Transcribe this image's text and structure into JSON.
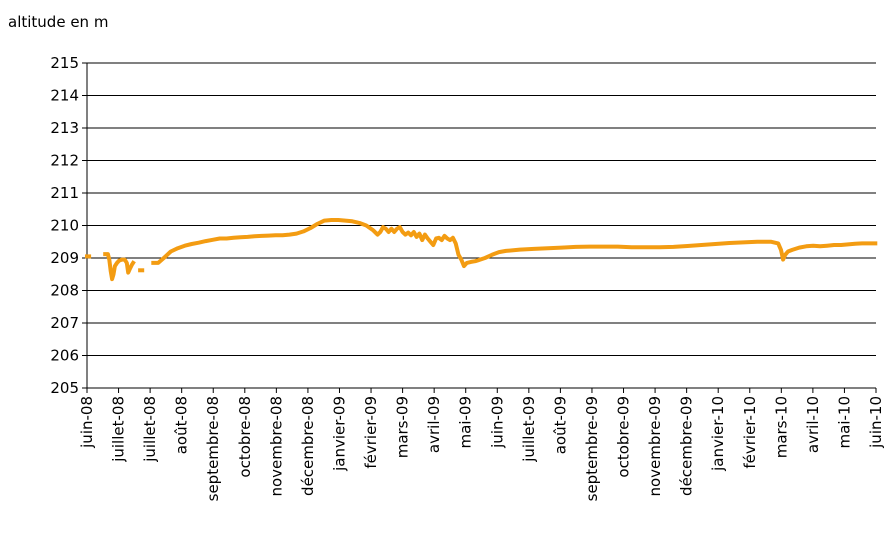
{
  "chart_data": {
    "type": "line",
    "ylabel": "altitude en m",
    "xlabel": "",
    "title": "",
    "ylim": [
      205,
      215
    ],
    "yticks": [
      "205",
      "206",
      "207",
      "208",
      "209",
      "210",
      "211",
      "212",
      "213",
      "214",
      "215"
    ],
    "grid": true,
    "legend": "none",
    "xtick_labels": [
      "juin-08",
      "juillet-08",
      "juillet-08",
      "août-08",
      "septembre-08",
      "octobre-08",
      "novembre-08",
      "décembre-08",
      "janvier-09",
      "février-09",
      "mars-09",
      "avril-09",
      "mai-09",
      "juin-09",
      "juillet-09",
      "août-09",
      "septembre-09",
      "octobre-09",
      "novembre-09",
      "décembre-09",
      "janvier-10",
      "février-10",
      "mars-10",
      "avril-10",
      "mai-10",
      "juin-10"
    ],
    "series_color": "#F39C12",
    "series": [
      {
        "segments": [
          [
            [
              0,
              209.05
            ],
            [
              0.3,
              209.05
            ]
          ],
          [
            [
              2.6,
              209.12
            ],
            [
              3.0,
              209.12
            ],
            [
              3.2,
              208.95
            ],
            [
              3.4,
              208.6
            ],
            [
              3.6,
              208.35
            ],
            [
              3.8,
              208.5
            ],
            [
              4.0,
              208.75
            ],
            [
              4.3,
              208.85
            ],
            [
              4.6,
              208.92
            ],
            [
              5.0,
              208.95
            ],
            [
              5.4,
              208.95
            ],
            [
              5.7,
              208.85
            ],
            [
              5.9,
              208.55
            ],
            [
              6.1,
              208.65
            ],
            [
              6.4,
              208.78
            ],
            [
              6.6,
              208.85
            ]
          ],
          [
            [
              7.6,
              208.62
            ],
            [
              7.9,
              208.62
            ]
          ],
          [
            [
              9.5,
              208.85
            ],
            [
              10.2,
              208.85
            ],
            [
              11.0,
              209.0
            ],
            [
              12.0,
              209.2
            ],
            [
              13.0,
              209.3
            ],
            [
              14.0,
              209.38
            ],
            [
              15.0,
              209.43
            ],
            [
              16.0,
              209.47
            ],
            [
              17.0,
              209.52
            ],
            [
              18.0,
              209.56
            ],
            [
              19.0,
              209.6
            ],
            [
              20.0,
              209.6
            ],
            [
              21.0,
              209.62
            ],
            [
              22.0,
              209.64
            ],
            [
              23.0,
              209.65
            ],
            [
              24.0,
              209.67
            ],
            [
              25.0,
              209.68
            ],
            [
              26.0,
              209.69
            ],
            [
              27.0,
              209.7
            ],
            [
              28.0,
              209.7
            ],
            [
              29.0,
              209.72
            ],
            [
              30.0,
              209.75
            ],
            [
              31.0,
              209.82
            ],
            [
              32.0,
              209.92
            ],
            [
              33.0,
              210.05
            ],
            [
              34.0,
              210.15
            ],
            [
              35.0,
              210.17
            ],
            [
              36.0,
              210.17
            ],
            [
              37.0,
              210.15
            ],
            [
              38.0,
              210.13
            ],
            [
              39.0,
              210.08
            ],
            [
              40.0,
              210.0
            ],
            [
              41.0,
              209.85
            ],
            [
              41.6,
              209.72
            ],
            [
              42.0,
              209.8
            ],
            [
              42.4,
              209.95
            ],
            [
              42.8,
              209.9
            ],
            [
              43.2,
              209.8
            ],
            [
              43.6,
              209.9
            ],
            [
              44.0,
              209.8
            ],
            [
              44.4,
              209.9
            ],
            [
              44.8,
              209.95
            ],
            [
              45.2,
              209.8
            ],
            [
              45.6,
              209.72
            ],
            [
              46.0,
              209.78
            ],
            [
              46.4,
              209.7
            ],
            [
              46.8,
              209.8
            ],
            [
              47.2,
              209.65
            ],
            [
              47.6,
              209.75
            ],
            [
              48.0,
              209.55
            ],
            [
              48.4,
              209.72
            ],
            [
              48.8,
              209.6
            ],
            [
              49.2,
              209.5
            ],
            [
              49.6,
              209.4
            ],
            [
              50.0,
              209.6
            ],
            [
              50.4,
              209.62
            ],
            [
              50.8,
              209.55
            ],
            [
              51.2,
              209.68
            ],
            [
              51.6,
              209.6
            ],
            [
              52.0,
              209.55
            ],
            [
              52.4,
              209.62
            ],
            [
              52.8,
              209.45
            ],
            [
              53.2,
              209.1
            ],
            [
              53.6,
              208.95
            ],
            [
              54.0,
              208.75
            ],
            [
              54.4,
              208.85
            ],
            [
              55.0,
              208.88
            ],
            [
              55.6,
              208.9
            ],
            [
              56.0,
              208.93
            ],
            [
              57.0,
              209.0
            ],
            [
              58.0,
              209.1
            ],
            [
              59.0,
              209.18
            ],
            [
              60.0,
              209.22
            ],
            [
              62.0,
              209.26
            ],
            [
              64.0,
              209.28
            ],
            [
              66.0,
              209.3
            ],
            [
              68.0,
              209.32
            ],
            [
              70.0,
              209.34
            ],
            [
              72.0,
              209.35
            ],
            [
              74.0,
              209.35
            ],
            [
              76.0,
              209.35
            ],
            [
              78.0,
              209.33
            ],
            [
              80.0,
              209.33
            ],
            [
              82.0,
              209.33
            ],
            [
              84.0,
              209.34
            ],
            [
              86.0,
              209.37
            ],
            [
              88.0,
              209.4
            ],
            [
              90.0,
              209.43
            ],
            [
              92.0,
              209.46
            ],
            [
              94.0,
              209.48
            ],
            [
              96.0,
              209.5
            ],
            [
              98.0,
              209.5
            ],
            [
              99.0,
              209.45
            ],
            [
              99.4,
              209.25
            ],
            [
              99.7,
              208.95
            ],
            [
              100.0,
              209.1
            ],
            [
              100.4,
              209.2
            ],
            [
              101.0,
              209.25
            ],
            [
              102.0,
              209.32
            ],
            [
              103.0,
              209.36
            ],
            [
              104.0,
              209.38
            ],
            [
              105.0,
              209.36
            ],
            [
              106.0,
              209.38
            ],
            [
              107.0,
              209.4
            ],
            [
              108.0,
              209.4
            ],
            [
              109.0,
              209.42
            ],
            [
              110.0,
              209.44
            ],
            [
              111.0,
              209.45
            ],
            [
              112.0,
              209.45
            ],
            [
              112.9,
              209.45
            ]
          ]
        ]
      }
    ]
  }
}
